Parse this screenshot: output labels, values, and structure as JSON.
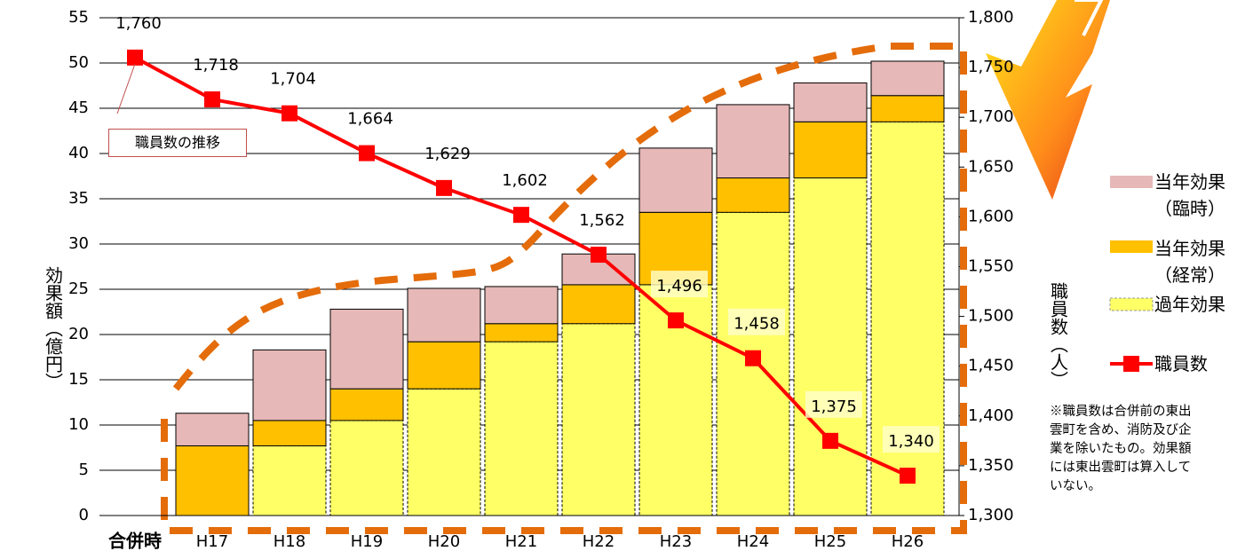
{
  "chart_data": {
    "type": "bar",
    "y_label": "効果額（億円）",
    "y2_label": "職員数（人）",
    "categories": [
      "合併時",
      "H17",
      "H18",
      "H19",
      "H20",
      "H21",
      "H22",
      "H23",
      "H24",
      "H25",
      "H26"
    ],
    "series": [
      {
        "name": "当年効果（臨時）",
        "color": "#e6b8b7",
        "values": [
          null,
          3.6,
          7.8,
          8.8,
          5.9,
          4.1,
          3.4,
          7.1,
          8.1,
          4.3,
          3.8
        ]
      },
      {
        "name": "当年効果（経常）",
        "color": "#ffc000",
        "values": [
          null,
          7.7,
          2.8,
          3.5,
          5.2,
          2.0,
          4.3,
          8.0,
          3.8,
          6.2,
          2.9
        ]
      },
      {
        "name": "過年効果",
        "color": "#ffff66",
        "values": [
          null,
          0,
          7.7,
          10.5,
          14.0,
          19.2,
          21.2,
          25.5,
          33.5,
          37.3,
          43.5
        ]
      },
      {
        "name": "職員数",
        "color": "#ff0000",
        "type": "line",
        "axis": "y2",
        "values": [
          1760,
          1718,
          1704,
          1664,
          1629,
          1602,
          1562,
          1496,
          1458,
          1375,
          1340
        ],
        "value_labels": [
          "1,760",
          "1,718",
          "1,704",
          "1,664",
          "1,629",
          "1,602",
          "1,562",
          "1,496",
          "1,458",
          "1,375",
          "1,340"
        ]
      }
    ],
    "ylim": [
      0,
      55
    ],
    "yticks": [
      0,
      5,
      10,
      15,
      20,
      25,
      30,
      35,
      40,
      45,
      50,
      55
    ],
    "y2lim": [
      1300,
      1800
    ],
    "y2ticks": [
      {
        "value": 1300,
        "label": "1,300"
      },
      {
        "value": 1350,
        "label": "1,350"
      },
      {
        "value": 1400,
        "label": "1,400"
      },
      {
        "value": 1450,
        "label": "1,450"
      },
      {
        "value": 1500,
        "label": "1,500"
      },
      {
        "value": 1550,
        "label": "1,550"
      },
      {
        "value": 1600,
        "label": "1,600"
      },
      {
        "value": 1650,
        "label": "1,650"
      },
      {
        "value": 1700,
        "label": "1,700"
      },
      {
        "value": 1750,
        "label": "1,750"
      },
      {
        "value": 1800,
        "label": "1,800"
      }
    ],
    "grid": true,
    "callout": "職員数の推移",
    "note": "※職員数は合併前の東出雲町を含め、消防及び企業を除いたもの。効果額には東出雲町は算入していない。"
  }
}
